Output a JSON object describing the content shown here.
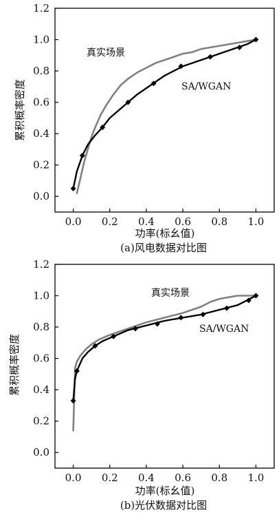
{
  "chart_data": [
    {
      "type": "line",
      "caption": "(a)风电数据对比图",
      "xlabel": "功率(标幺值)",
      "ylabel": "累积概率密度",
      "xlim": [
        -0.1,
        1.1
      ],
      "ylim": [
        -0.1,
        1.2
      ],
      "xticks": [
        0.0,
        0.2,
        0.4,
        0.6,
        0.8,
        1.0
      ],
      "yticks": [
        0.0,
        0.2,
        0.4,
        0.6,
        0.8,
        1.0,
        1.2
      ],
      "xtick_labels": [
        "0.0",
        "0.2",
        "0.4",
        "0.6",
        "0.8",
        "1.0"
      ],
      "ytick_labels": [
        "0.0",
        "0.2",
        "0.4",
        "0.6",
        "0.8",
        "1.0",
        "1.2"
      ],
      "series": [
        {
          "name": "真实场景",
          "color": "#808080",
          "marker": "none",
          "x": [
            0.02,
            0.04,
            0.06,
            0.08,
            0.1,
            0.12,
            0.15,
            0.18,
            0.22,
            0.26,
            0.3,
            0.35,
            0.4,
            0.45,
            0.5,
            0.55,
            0.6,
            0.65,
            0.7,
            0.75,
            0.8,
            0.85,
            0.9,
            0.95,
            1.0
          ],
          "y": [
            0.02,
            0.12,
            0.22,
            0.3,
            0.38,
            0.44,
            0.52,
            0.58,
            0.65,
            0.71,
            0.75,
            0.79,
            0.82,
            0.85,
            0.87,
            0.89,
            0.91,
            0.92,
            0.94,
            0.95,
            0.96,
            0.97,
            0.98,
            0.99,
            1.0
          ]
        },
        {
          "name": "SA/WGAN",
          "color": "#000000",
          "marker": "diamond",
          "x": [
            0.0,
            0.02,
            0.05,
            0.08,
            0.12,
            0.16,
            0.2,
            0.25,
            0.3,
            0.35,
            0.4,
            0.45,
            0.5,
            0.55,
            0.6,
            0.65,
            0.7,
            0.75,
            0.8,
            0.85,
            0.9,
            0.95,
            1.0
          ],
          "y": [
            0.05,
            0.16,
            0.26,
            0.33,
            0.39,
            0.44,
            0.5,
            0.55,
            0.6,
            0.65,
            0.69,
            0.73,
            0.77,
            0.8,
            0.83,
            0.85,
            0.87,
            0.89,
            0.91,
            0.93,
            0.95,
            0.97,
            1.0
          ],
          "marker_x": [
            0.0,
            0.05,
            0.16,
            0.3,
            0.44,
            0.59,
            0.75,
            0.91,
            1.0
          ],
          "marker_y": [
            0.05,
            0.26,
            0.44,
            0.6,
            0.72,
            0.83,
            0.89,
            0.95,
            1.0
          ]
        }
      ],
      "annotations": [
        {
          "text": "真实场景",
          "x": 0.24,
          "y": 0.88
        },
        {
          "text": "SA/WGAN",
          "x": 0.6,
          "y": 0.7
        }
      ]
    },
    {
      "type": "line",
      "caption": "(b)光伏数据对比图",
      "xlabel": "功率(标幺值)",
      "ylabel": "累积概率密度",
      "xlim": [
        -0.1,
        1.1
      ],
      "ylim": [
        -0.1,
        1.2
      ],
      "xticks": [
        0.0,
        0.2,
        0.4,
        0.6,
        0.8,
        1.0
      ],
      "yticks": [
        0.0,
        0.2,
        0.4,
        0.6,
        0.8,
        1.0,
        1.2
      ],
      "xtick_labels": [
        "0.0",
        "0.2",
        "0.4",
        "0.6",
        "0.8",
        "1.0"
      ],
      "ytick_labels": [
        "0.0",
        "0.2",
        "0.4",
        "0.6",
        "0.8",
        "1.0",
        "1.2"
      ],
      "series": [
        {
          "name": "真实场景",
          "color": "#808080",
          "marker": "none",
          "x": [
            0.0,
            0.01,
            0.02,
            0.04,
            0.07,
            0.1,
            0.14,
            0.2,
            0.3,
            0.4,
            0.5,
            0.6,
            0.65,
            0.7,
            0.75,
            0.8,
            0.85,
            0.9,
            0.95,
            1.0
          ],
          "y": [
            0.14,
            0.54,
            0.58,
            0.62,
            0.66,
            0.69,
            0.72,
            0.75,
            0.79,
            0.83,
            0.86,
            0.89,
            0.91,
            0.93,
            0.96,
            0.98,
            0.99,
            1.0,
            1.0,
            1.0
          ]
        },
        {
          "name": "SA/WGAN",
          "color": "#000000",
          "marker": "diamond",
          "x": [
            0.0,
            0.01,
            0.02,
            0.05,
            0.08,
            0.12,
            0.16,
            0.22,
            0.3,
            0.4,
            0.5,
            0.6,
            0.7,
            0.8,
            0.9,
            0.95,
            1.0
          ],
          "y": [
            0.33,
            0.47,
            0.52,
            0.6,
            0.64,
            0.68,
            0.71,
            0.74,
            0.78,
            0.81,
            0.84,
            0.86,
            0.88,
            0.91,
            0.94,
            0.97,
            1.0
          ],
          "marker_x": [
            0.0,
            0.02,
            0.12,
            0.22,
            0.34,
            0.46,
            0.59,
            0.71,
            0.84,
            0.96,
            1.0
          ],
          "marker_y": [
            0.33,
            0.52,
            0.68,
            0.74,
            0.79,
            0.82,
            0.86,
            0.88,
            0.92,
            0.97,
            1.0
          ]
        }
      ],
      "annotations": [
        {
          "text": "真实场景",
          "x": 0.45,
          "y": 1.0
        },
        {
          "text": "SA/WGAN",
          "x": 0.7,
          "y": 0.8
        }
      ]
    }
  ]
}
